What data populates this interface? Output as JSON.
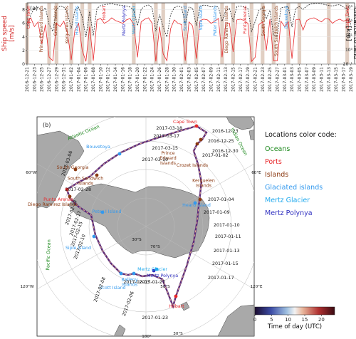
{
  "chart_data": [
    {
      "type": "line",
      "panel_label": "(a)",
      "ylabel_left": "Ship speed\n[m/s]",
      "ylabel_right": "distance to land\n[km]",
      "y_left_ticks": [
        "0",
        "2",
        "4",
        "6",
        "8"
      ],
      "y_left_range": [
        0,
        9
      ],
      "y_right_ticks": [
        "10⁻¹",
        "10⁰",
        "10¹",
        "10²",
        "10³"
      ],
      "y_right_scale": "log",
      "x_date_labels": [
        "2016-12-21",
        "2016-12-23",
        "2016-12-25",
        "2016-12-27",
        "2016-12-29",
        "2016-12-31",
        "2017-01-02",
        "2017-01-04",
        "2017-01-06",
        "2017-01-08",
        "2017-01-10",
        "2017-01-12",
        "2017-01-14",
        "2017-01-16",
        "2017-01-18",
        "2017-01-20",
        "2017-01-22",
        "2017-01-24",
        "2017-01-26",
        "2017-01-28",
        "2017-01-30",
        "2017-02-01",
        "2017-02-03",
        "2017-02-05",
        "2017-02-07",
        "2017-02-09",
        "2017-02-11",
        "2017-02-13",
        "2017-02-15",
        "2017-02-17",
        "2017-02-19",
        "2017-02-21",
        "2017-02-23",
        "2017-02-25",
        "2017-02-27",
        "2017-03-01",
        "2017-03-03",
        "2017-03-05",
        "2017-03-07",
        "2017-03-09",
        "2017-03-11",
        "2017-03-13",
        "2017-03-15",
        "2017-03-17",
        "2017-03-19"
      ],
      "series": [
        {
          "name": "",
          "color": "#e8282b",
          "axis": "left",
          "style": "solid",
          "x": [
            "2016-12-21",
            "2016-12-22",
            "2016-12-23",
            "2016-12-24",
            "2016-12-25",
            "2016-12-26",
            "2016-12-27",
            "2016-12-28",
            "2016-12-29",
            "2016-12-30",
            "2016-12-31",
            "2017-01-01",
            "2017-01-02",
            "2017-01-03",
            "2017-01-04",
            "2017-01-05",
            "2017-01-06",
            "2017-01-07",
            "2017-01-08",
            "2017-01-09",
            "2017-01-10",
            "2017-01-11",
            "2017-01-12",
            "2017-01-13",
            "2017-01-14",
            "2017-01-15",
            "2017-01-16",
            "2017-01-17",
            "2017-01-18",
            "2017-01-19",
            "2017-01-20",
            "2017-01-21",
            "2017-01-22",
            "2017-01-23",
            "2017-01-24",
            "2017-01-25",
            "2017-01-26",
            "2017-01-27",
            "2017-01-28",
            "2017-01-29",
            "2017-01-30",
            "2017-01-31",
            "2017-02-01",
            "2017-02-02",
            "2017-02-03",
            "2017-02-04",
            "2017-02-05",
            "2017-02-06",
            "2017-02-07",
            "2017-02-08",
            "2017-02-09",
            "2017-02-10",
            "2017-02-11",
            "2017-02-12",
            "2017-02-13",
            "2017-02-14",
            "2017-02-15",
            "2017-02-16",
            "2017-02-17",
            "2017-02-18",
            "2017-02-19",
            "2017-02-20",
            "2017-02-21",
            "2017-02-22",
            "2017-02-23",
            "2017-02-24",
            "2017-02-25",
            "2017-02-26",
            "2017-02-27",
            "2017-02-28",
            "2017-03-01",
            "2017-03-02",
            "2017-03-03",
            "2017-03-04",
            "2017-03-05",
            "2017-03-06",
            "2017-03-07",
            "2017-03-08",
            "2017-03-09",
            "2017-03-10",
            "2017-03-11",
            "2017-03-12",
            "2017-03-13",
            "2017-03-14",
            "2017-03-15",
            "2017-03-16",
            "2017-03-17",
            "2017-03-18",
            "2017-03-19"
          ],
          "y": [
            6.0,
            6.8,
            5.5,
            6.2,
            3.0,
            5.8,
            1.0,
            0.5,
            6.0,
            5.5,
            6.3,
            4.5,
            0.6,
            5.0,
            6.0,
            2.0,
            0.4,
            5.5,
            0.5,
            6.5,
            6.7,
            6.0,
            6.3,
            6.8,
            6.4,
            6.2,
            6.0,
            6.5,
            6.7,
            5.8,
            1.0,
            6.2,
            6.6,
            6.8,
            6.0,
            0.4,
            5.5,
            1.5,
            0.5,
            5.2,
            6.5,
            6.0,
            5.8,
            0.5,
            6.2,
            5.6,
            0.8,
            6.4,
            6.6,
            6.5,
            6.0,
            6.3,
            6.7,
            1.0,
            6.1,
            6.0,
            1.8,
            6.5,
            6.6,
            6.4,
            6.0,
            0.4,
            1.0,
            5.8,
            6.2,
            2.0,
            6.6,
            0.5,
            0.5,
            6.3,
            5.5,
            6.2,
            0.8,
            6.5,
            6.6,
            5.0,
            6.4,
            6.7,
            6.8,
            6.5,
            6.2,
            6.7,
            6.6,
            6.0,
            6.4,
            6.6,
            6.3,
            6.5,
            6.2
          ]
        },
        {
          "name": "",
          "color": "#222222",
          "axis": "right",
          "style": "dashed",
          "x": [
            "2016-12-21",
            "2016-12-22",
            "2016-12-23",
            "2016-12-24",
            "2016-12-25",
            "2016-12-26",
            "2016-12-27",
            "2016-12-28",
            "2016-12-29",
            "2016-12-30",
            "2016-12-31",
            "2017-01-01",
            "2017-01-02",
            "2017-01-03",
            "2017-01-04",
            "2017-01-05",
            "2017-01-06",
            "2017-01-07",
            "2017-01-08",
            "2017-01-09",
            "2017-01-10",
            "2017-01-11",
            "2017-01-12",
            "2017-01-13",
            "2017-01-14",
            "2017-01-15",
            "2017-01-16",
            "2017-01-17",
            "2017-01-18",
            "2017-01-19",
            "2017-01-20",
            "2017-01-21",
            "2017-01-22",
            "2017-01-23",
            "2017-01-24",
            "2017-01-25",
            "2017-01-26",
            "2017-01-27",
            "2017-01-28",
            "2017-01-29",
            "2017-01-30",
            "2017-01-31",
            "2017-02-01",
            "2017-02-02",
            "2017-02-03",
            "2017-02-04",
            "2017-02-05",
            "2017-02-06",
            "2017-02-07",
            "2017-02-08",
            "2017-02-09",
            "2017-02-10",
            "2017-02-11",
            "2017-02-12",
            "2017-02-13",
            "2017-02-14",
            "2017-02-15",
            "2017-02-16",
            "2017-02-17",
            "2017-02-18",
            "2017-02-19",
            "2017-02-20",
            "2017-02-21",
            "2017-02-22",
            "2017-02-23",
            "2017-02-24",
            "2017-02-25",
            "2017-02-26",
            "2017-02-27",
            "2017-02-28",
            "2017-03-01",
            "2017-03-02",
            "2017-03-03",
            "2017-03-04",
            "2017-03-05",
            "2017-03-06",
            "2017-03-07",
            "2017-03-08",
            "2017-03-09",
            "2017-03-10",
            "2017-03-11",
            "2017-03-12",
            "2017-03-13",
            "2017-03-14",
            "2017-03-15",
            "2017-03-16",
            "2017-03-17",
            "2017-03-18",
            "2017-03-19"
          ],
          "y": [
            30,
            300,
            800,
            1000,
            500,
            900,
            60,
            20,
            700,
            1200,
            1000,
            400,
            30,
            600,
            1000,
            200,
            8,
            500,
            10,
            800,
            1300,
            1500,
            1600,
            1800,
            1500,
            1400,
            1300,
            1200,
            1000,
            600,
            50,
            700,
            1200,
            1400,
            900,
            20,
            300,
            40,
            8,
            300,
            900,
            1200,
            1000,
            60,
            1000,
            800,
            50,
            1200,
            1400,
            1300,
            1000,
            1200,
            1000,
            100,
            600,
            800,
            100,
            1100,
            1200,
            1000,
            800,
            20,
            100,
            600,
            900,
            150,
            600,
            10,
            10,
            900,
            1000,
            1100,
            40,
            800,
            1100,
            700,
            1200,
            1600,
            1800,
            1900,
            1700,
            1500,
            1300,
            1200,
            1400,
            1500,
            1000,
            700,
            50
          ]
        }
      ],
      "annotations": [
        {
          "label": "Cape Town",
          "color": "#e8282b"
        },
        {
          "label": "Prince Edward Islands",
          "color": "#8b3a12"
        },
        {
          "label": "Crozet Islands",
          "color": "#8b3a12"
        },
        {
          "label": "Kerguelen Islands",
          "color": "#8b3a12"
        },
        {
          "label": "Heard Islands",
          "color": "#3399ee"
        },
        {
          "label": "Hobart",
          "color": "#e8282b"
        },
        {
          "label": "Mertz Polynya",
          "color": "#3030c0"
        },
        {
          "label": "Mertz Glacier",
          "color": "#22aaee"
        },
        {
          "label": "Scott Island",
          "color": "#3399ee"
        },
        {
          "label": "Siple Island",
          "color": "#3399ee"
        },
        {
          "label": "Peter I Islands",
          "color": "#3399ee"
        },
        {
          "label": "Diego Ramirez Islands",
          "color": "#8b3a12"
        },
        {
          "label": "Punta Arenas",
          "color": "#e8282b"
        },
        {
          "label": "South Georgia",
          "color": "#8b3a12"
        },
        {
          "label": "South Sandwich Islands",
          "color": "#8b3a12"
        },
        {
          "label": "Bouvetoya",
          "color": "#3399ee"
        },
        {
          "label": "Cape Town",
          "color": "#e8282b"
        }
      ]
    },
    {
      "type": "map",
      "panel_label": "(b)",
      "oceans": [
        "Atlantic Ocean",
        "Indian Ocean",
        "Pacific Ocean"
      ],
      "places": [
        {
          "label": "Cape Town",
          "color": "#e8282b"
        },
        {
          "label": "South Georgia",
          "color": "#8b3a12"
        },
        {
          "label": "South Sandwich\nIslands",
          "color": "#8b3a12"
        },
        {
          "label": "Bouvetoya",
          "color": "#3399ee"
        },
        {
          "label": "Prince\nEdward\nIslands",
          "color": "#8b3a12"
        },
        {
          "label": "Crozet Islands",
          "color": "#8b3a12"
        },
        {
          "label": "Kerguelen\nIslands",
          "color": "#8b3a12"
        },
        {
          "label": "Heard Island",
          "color": "#3399ee"
        },
        {
          "label": "Punta Arenas",
          "color": "#e8282b"
        },
        {
          "label": "Diego Ramirez Islands",
          "color": "#8b3a12"
        },
        {
          "label": "Peter I Island",
          "color": "#3399ee"
        },
        {
          "label": "Siple Island",
          "color": "#3399ee"
        },
        {
          "label": "Scott Island",
          "color": "#3399ee"
        },
        {
          "label": "Balleny\nIslands",
          "color": "#3399ee"
        },
        {
          "label": "Mertz Polynya",
          "color": "#3030c0"
        },
        {
          "label": "Mertz Glacier",
          "color": "#22aaee"
        },
        {
          "label": "Hobart",
          "color": "#e8282b"
        }
      ],
      "dates": [
        "2017-03-18",
        "2016-12-23",
        "2017-03-17",
        "2016-12-25",
        "2017-03-15",
        "2017-03-10",
        "2016-12-30",
        "2017-01-02",
        "2017-03-06",
        "2017-02-28",
        "2017-01-04",
        "2017-01-09",
        "2017-01-10",
        "2017-02-19",
        "2017-02-17",
        "2017-01-11",
        "2017-02-15",
        "2017-01-13",
        "2017-02-10",
        "2017-01-27",
        "2017-01-15",
        "2017-02-08",
        "2017-02-06",
        "2017-02-03",
        "2017-01-17",
        "2017-01-23"
      ],
      "grid_labels": [
        "60°W",
        "60°E",
        "30°S",
        "50°S",
        "70°S",
        "40°S",
        "120°W",
        "120°E",
        "180°",
        "30°S"
      ],
      "legend_title": "Locations color code:",
      "legend_items": [
        {
          "label": "Oceans",
          "color": "#1f8a1f"
        },
        {
          "label": "Ports",
          "color": "#e8282b"
        },
        {
          "label": "Islands",
          "color": "#8b3a12"
        },
        {
          "label": "Glaciated islands",
          "color": "#3399ee"
        },
        {
          "label": "Mertz Glacier",
          "color": "#22aaee"
        },
        {
          "label": "Mertz Polynya",
          "color": "#3030c0"
        }
      ],
      "colorbar": {
        "label": "Time of day (UTC)",
        "ticks": [
          "0",
          "5",
          "10",
          "15",
          "20"
        ],
        "range": [
          0,
          24
        ]
      }
    }
  ]
}
